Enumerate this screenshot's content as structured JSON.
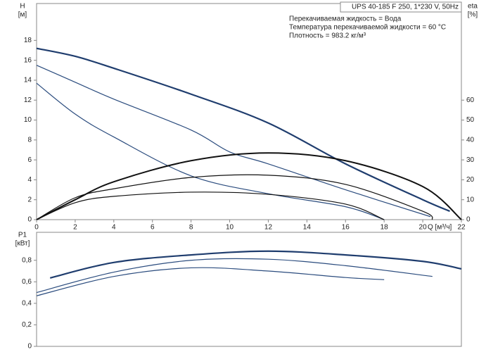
{
  "chart_data": [
    {
      "type": "line",
      "title": "UPS 40-185 F 250, 1*230 V, 50Hz",
      "annotations": [
        "Перекачиваемая жидкость = Вода",
        "Температура перекачиваемой жидкости = 60 °C",
        "Плотность = 983.2 кг/м³"
      ],
      "y_label": "H",
      "y_unit": "[м]",
      "y2_label": "eta",
      "y2_unit": "[%]",
      "x_label": "Q [м³/ч]",
      "xlim": [
        0,
        22
      ],
      "xticks": [
        0,
        2,
        4,
        6,
        8,
        10,
        12,
        14,
        16,
        18,
        20,
        22
      ],
      "ylim": [
        0,
        21.7
      ],
      "yticks": [
        0,
        2,
        4,
        6,
        8,
        10,
        12,
        14,
        16,
        18
      ],
      "y2lim": [
        0,
        108.5
      ],
      "y2ticks": [
        0,
        10,
        20,
        30,
        40,
        50,
        60
      ],
      "series": [
        {
          "color": "#1f3d6e",
          "width": 2.2,
          "x": [
            0,
            2,
            4,
            8,
            12,
            16,
            20,
            21.4
          ],
          "values": [
            17.2,
            16.4,
            15.2,
            12.6,
            9.7,
            5.6,
            2.0,
            0.85
          ]
        },
        {
          "color": "#2b4c7e",
          "width": 1.2,
          "x": [
            0,
            2,
            4,
            8,
            10,
            12,
            16,
            20.4
          ],
          "values": [
            15.5,
            13.8,
            12.1,
            9.0,
            6.8,
            5.6,
            3.0,
            0.3
          ]
        },
        {
          "color": "#2b4c7e",
          "width": 1.2,
          "x": [
            0,
            2,
            4,
            8,
            12,
            16,
            18
          ],
          "values": [
            13.7,
            10.6,
            8.3,
            4.4,
            2.6,
            1.3,
            0
          ]
        },
        {
          "color": "#111111",
          "width": 2,
          "axis": "y2",
          "x": [
            0,
            2,
            4,
            8,
            12,
            16,
            20,
            22
          ],
          "values": [
            0,
            10,
            19,
            29.6,
            33.5,
            29.6,
            16.6,
            0
          ]
        },
        {
          "color": "#111111",
          "width": 1.2,
          "axis": "y2",
          "x": [
            0,
            2,
            4,
            8,
            12,
            16,
            20,
            20.5
          ],
          "values": [
            0,
            11,
            15.5,
            21.2,
            22.3,
            17.7,
            4.2,
            0
          ]
        },
        {
          "color": "#111111",
          "width": 1.2,
          "axis": "y2",
          "x": [
            0,
            2,
            4,
            8,
            12,
            16,
            18
          ],
          "values": [
            0,
            8.5,
            11.7,
            13.8,
            12.7,
            7.8,
            0
          ]
        }
      ]
    },
    {
      "type": "line",
      "y_label": "P1",
      "y_unit": "[кВт]",
      "xlim": [
        0,
        22
      ],
      "ylim": [
        0,
        1.06
      ],
      "yticks": [
        0,
        {
          "value": 0.2,
          "label": "0,2"
        },
        {
          "value": 0.4,
          "label": "0,4"
        },
        {
          "value": 0.6,
          "label": "0,6"
        },
        {
          "value": 0.8,
          "label": "0,8"
        }
      ],
      "series": [
        {
          "color": "#1f3d6e",
          "width": 2.2,
          "x": [
            0.7,
            4,
            8,
            12,
            16,
            20,
            22
          ],
          "values": [
            0.636,
            0.78,
            0.85,
            0.885,
            0.85,
            0.79,
            0.72
          ]
        },
        {
          "color": "#2b4c7e",
          "width": 1.2,
          "x": [
            0,
            4,
            8,
            12,
            16,
            20.5
          ],
          "values": [
            0.5,
            0.69,
            0.8,
            0.81,
            0.75,
            0.65
          ]
        },
        {
          "color": "#2b4c7e",
          "width": 1.2,
          "x": [
            0,
            4,
            8,
            12,
            16,
            18
          ],
          "values": [
            0.47,
            0.65,
            0.73,
            0.7,
            0.64,
            0.62
          ]
        }
      ]
    }
  ]
}
